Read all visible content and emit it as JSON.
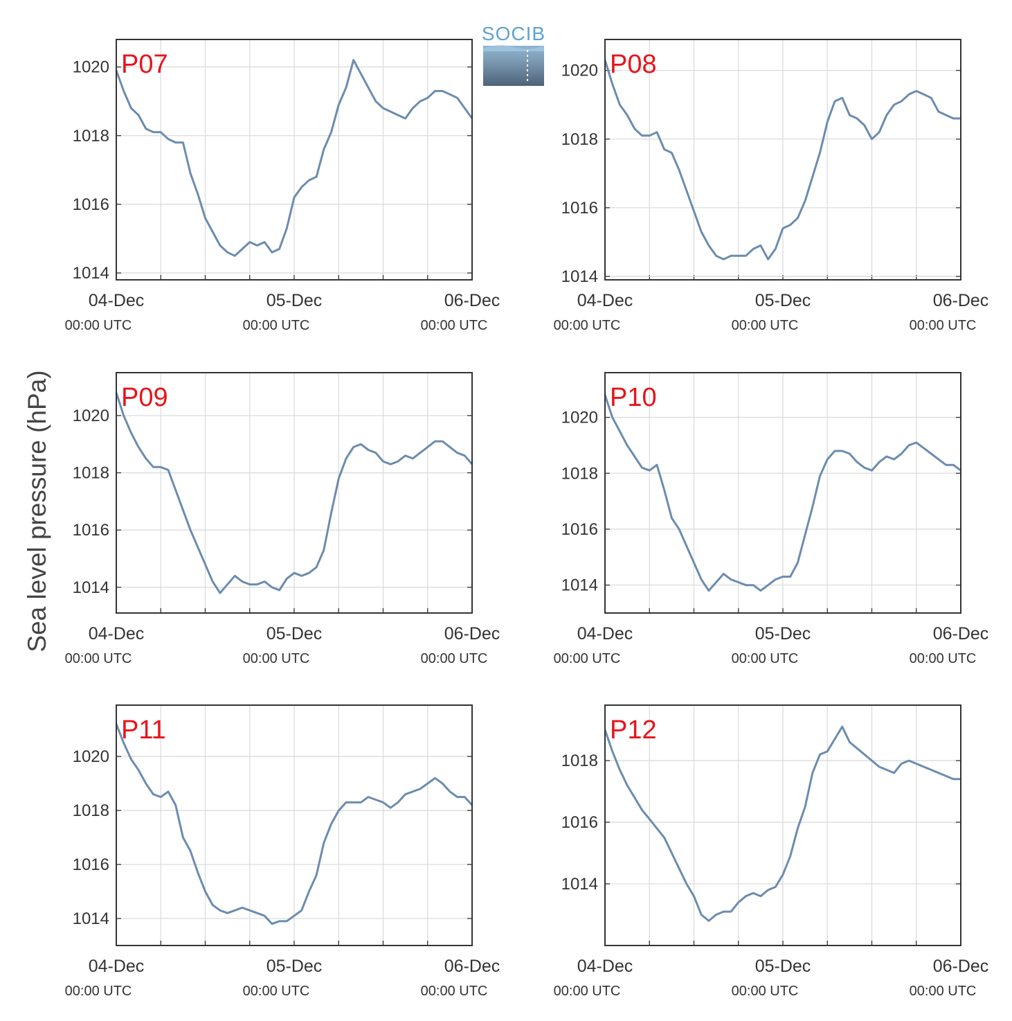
{
  "figure": {
    "ylabel": "Sea level pressure (hPa)",
    "logo_text": "SOCIB"
  },
  "colors": {
    "line": "#6b8cae",
    "station_label": "#e8141b",
    "grid": "#dcdcdc",
    "axes": "#333333"
  },
  "chart_data": [
    {
      "type": "line",
      "station": "P07",
      "x_ticks": [
        "04-Dec",
        "05-Dec",
        "06-Dec"
      ],
      "x_tick_sub": "00:00 UTC",
      "x_range_hours": [
        0,
        48
      ],
      "ylim": [
        1013.8,
        1020.8
      ],
      "yticks": [
        1014,
        1016,
        1018,
        1020
      ],
      "x": [
        0,
        1,
        2,
        3,
        4,
        5,
        6,
        7,
        8,
        9,
        10,
        11,
        12,
        13,
        14,
        15,
        16,
        17,
        18,
        19,
        20,
        21,
        22,
        23,
        24,
        25,
        26,
        27,
        28,
        29,
        30,
        31,
        32,
        33,
        34,
        35,
        36,
        37,
        38,
        39,
        40,
        41,
        42,
        43,
        44,
        45,
        46,
        47,
        48
      ],
      "values": [
        1019.9,
        1019.3,
        1018.8,
        1018.6,
        1018.2,
        1018.1,
        1018.1,
        1017.9,
        1017.8,
        1017.8,
        1016.9,
        1016.3,
        1015.6,
        1015.2,
        1014.8,
        1014.6,
        1014.5,
        1014.7,
        1014.9,
        1014.8,
        1014.9,
        1014.6,
        1014.7,
        1015.3,
        1016.2,
        1016.5,
        1016.7,
        1016.8,
        1017.6,
        1018.1,
        1018.9,
        1019.4,
        1020.2,
        1019.8,
        1019.4,
        1019.0,
        1018.8,
        1018.7,
        1018.6,
        1018.5,
        1018.8,
        1019.0,
        1019.1,
        1019.3,
        1019.3,
        1019.2,
        1019.1,
        1018.8,
        1018.5
      ]
    },
    {
      "type": "line",
      "station": "P08",
      "x_ticks": [
        "04-Dec",
        "05-Dec",
        "06-Dec"
      ],
      "x_tick_sub": "00:00 UTC",
      "x_range_hours": [
        0,
        48
      ],
      "ylim": [
        1013.9,
        1020.9
      ],
      "yticks": [
        1014,
        1016,
        1018,
        1020
      ],
      "x": [
        0,
        1,
        2,
        3,
        4,
        5,
        6,
        7,
        8,
        9,
        10,
        11,
        12,
        13,
        14,
        15,
        16,
        17,
        18,
        19,
        20,
        21,
        22,
        23,
        24,
        25,
        26,
        27,
        28,
        29,
        30,
        31,
        32,
        33,
        34,
        35,
        36,
        37,
        38,
        39,
        40,
        41,
        42,
        43,
        44,
        45,
        46,
        47,
        48
      ],
      "values": [
        1020.3,
        1019.6,
        1019.0,
        1018.7,
        1018.3,
        1018.1,
        1018.1,
        1018.2,
        1017.7,
        1017.6,
        1017.1,
        1016.5,
        1015.9,
        1015.3,
        1014.9,
        1014.6,
        1014.5,
        1014.6,
        1014.6,
        1014.6,
        1014.8,
        1014.9,
        1014.5,
        1014.8,
        1015.4,
        1015.5,
        1015.7,
        1016.2,
        1016.9,
        1017.6,
        1018.5,
        1019.1,
        1019.2,
        1018.7,
        1018.6,
        1018.4,
        1018.0,
        1018.2,
        1018.7,
        1019.0,
        1019.1,
        1019.3,
        1019.4,
        1019.3,
        1019.2,
        1018.8,
        1018.7,
        1018.6,
        1018.6
      ]
    },
    {
      "type": "line",
      "station": "P09",
      "x_ticks": [
        "04-Dec",
        "05-Dec",
        "06-Dec"
      ],
      "x_tick_sub": "00:00 UTC",
      "x_range_hours": [
        0,
        48
      ],
      "ylim": [
        1013.1,
        1021.5
      ],
      "yticks": [
        1014,
        1016,
        1018,
        1020
      ],
      "x": [
        0,
        1,
        2,
        3,
        4,
        5,
        6,
        7,
        8,
        9,
        10,
        11,
        12,
        13,
        14,
        15,
        16,
        17,
        18,
        19,
        20,
        21,
        22,
        23,
        24,
        25,
        26,
        27,
        28,
        29,
        30,
        31,
        32,
        33,
        34,
        35,
        36,
        37,
        38,
        39,
        40,
        41,
        42,
        43,
        44,
        45,
        46,
        47,
        48
      ],
      "values": [
        1020.8,
        1020.0,
        1019.4,
        1018.9,
        1018.5,
        1018.2,
        1018.2,
        1018.1,
        1017.4,
        1016.7,
        1016.0,
        1015.4,
        1014.8,
        1014.2,
        1013.8,
        1014.1,
        1014.4,
        1014.2,
        1014.1,
        1014.1,
        1014.2,
        1014.0,
        1013.9,
        1014.3,
        1014.5,
        1014.4,
        1014.5,
        1014.7,
        1015.3,
        1016.6,
        1017.8,
        1018.5,
        1018.9,
        1019.0,
        1018.8,
        1018.7,
        1018.4,
        1018.3,
        1018.4,
        1018.6,
        1018.5,
        1018.7,
        1018.9,
        1019.1,
        1019.1,
        1018.9,
        1018.7,
        1018.6,
        1018.3
      ]
    },
    {
      "type": "line",
      "station": "P10",
      "x_ticks": [
        "04-Dec",
        "05-Dec",
        "06-Dec"
      ],
      "x_tick_sub": "00:00 UTC",
      "x_range_hours": [
        0,
        48
      ],
      "ylim": [
        1013.0,
        1021.6
      ],
      "yticks": [
        1014,
        1016,
        1018,
        1020
      ],
      "x": [
        0,
        1,
        2,
        3,
        4,
        5,
        6,
        7,
        8,
        9,
        10,
        11,
        12,
        13,
        14,
        15,
        16,
        17,
        18,
        19,
        20,
        21,
        22,
        23,
        24,
        25,
        26,
        27,
        28,
        29,
        30,
        31,
        32,
        33,
        34,
        35,
        36,
        37,
        38,
        39,
        40,
        41,
        42,
        43,
        44,
        45,
        46,
        47,
        48
      ],
      "values": [
        1020.8,
        1020.0,
        1019.5,
        1019.0,
        1018.6,
        1018.2,
        1018.1,
        1018.3,
        1017.4,
        1016.4,
        1016.0,
        1015.4,
        1014.8,
        1014.2,
        1013.8,
        1014.1,
        1014.4,
        1014.2,
        1014.1,
        1014.0,
        1014.0,
        1013.8,
        1014.0,
        1014.2,
        1014.3,
        1014.3,
        1014.8,
        1015.8,
        1016.8,
        1017.9,
        1018.5,
        1018.8,
        1018.8,
        1018.7,
        1018.4,
        1018.2,
        1018.1,
        1018.4,
        1018.6,
        1018.5,
        1018.7,
        1019.0,
        1019.1,
        1018.9,
        1018.7,
        1018.5,
        1018.3,
        1018.3,
        1018.1
      ]
    },
    {
      "type": "line",
      "station": "P11",
      "x_ticks": [
        "04-Dec",
        "05-Dec",
        "06-Dec"
      ],
      "x_tick_sub": "00:00 UTC",
      "x_range_hours": [
        0,
        48
      ],
      "ylim": [
        1013.0,
        1021.9
      ],
      "yticks": [
        1014,
        1016,
        1018,
        1020
      ],
      "x": [
        0,
        1,
        2,
        3,
        4,
        5,
        6,
        7,
        8,
        9,
        10,
        11,
        12,
        13,
        14,
        15,
        16,
        17,
        18,
        19,
        20,
        21,
        22,
        23,
        24,
        25,
        26,
        27,
        28,
        29,
        30,
        31,
        32,
        33,
        34,
        35,
        36,
        37,
        38,
        39,
        40,
        41,
        42,
        43,
        44,
        45,
        46,
        47,
        48
      ],
      "values": [
        1021.2,
        1020.5,
        1019.9,
        1019.5,
        1019.0,
        1018.6,
        1018.5,
        1018.7,
        1018.2,
        1017.0,
        1016.5,
        1015.7,
        1015.0,
        1014.5,
        1014.3,
        1014.2,
        1014.3,
        1014.4,
        1014.3,
        1014.2,
        1014.1,
        1013.8,
        1013.9,
        1013.9,
        1014.1,
        1014.3,
        1015.0,
        1015.6,
        1016.8,
        1017.5,
        1018.0,
        1018.3,
        1018.3,
        1018.3,
        1018.5,
        1018.4,
        1018.3,
        1018.1,
        1018.3,
        1018.6,
        1018.7,
        1018.8,
        1019.0,
        1019.2,
        1019.0,
        1018.7,
        1018.5,
        1018.5,
        1018.2
      ]
    },
    {
      "type": "line",
      "station": "P12",
      "x_ticks": [
        "04-Dec",
        "05-Dec",
        "06-Dec"
      ],
      "x_tick_sub": "00:00 UTC",
      "x_range_hours": [
        0,
        48
      ],
      "ylim": [
        1012.0,
        1019.8
      ],
      "yticks": [
        1014,
        1016,
        1018
      ],
      "x": [
        0,
        1,
        2,
        3,
        4,
        5,
        6,
        7,
        8,
        9,
        10,
        11,
        12,
        13,
        14,
        15,
        16,
        17,
        18,
        19,
        20,
        21,
        22,
        23,
        24,
        25,
        26,
        27,
        28,
        29,
        30,
        31,
        32,
        33,
        34,
        35,
        36,
        37,
        38,
        39,
        40,
        41,
        42,
        43,
        44,
        45,
        46,
        47,
        48
      ],
      "values": [
        1019.0,
        1018.3,
        1017.7,
        1017.2,
        1016.8,
        1016.4,
        1016.1,
        1015.8,
        1015.5,
        1015.0,
        1014.5,
        1014.0,
        1013.6,
        1013.0,
        1012.8,
        1013.0,
        1013.1,
        1013.1,
        1013.4,
        1013.6,
        1013.7,
        1013.6,
        1013.8,
        1013.9,
        1014.3,
        1014.9,
        1015.8,
        1016.5,
        1017.6,
        1018.2,
        1018.3,
        1018.7,
        1019.1,
        1018.6,
        1018.4,
        1018.2,
        1018.0,
        1017.8,
        1017.7,
        1017.6,
        1017.9,
        1018.0,
        1017.9,
        1017.8,
        1017.7,
        1017.6,
        1017.5,
        1017.4,
        1017.4
      ]
    }
  ]
}
